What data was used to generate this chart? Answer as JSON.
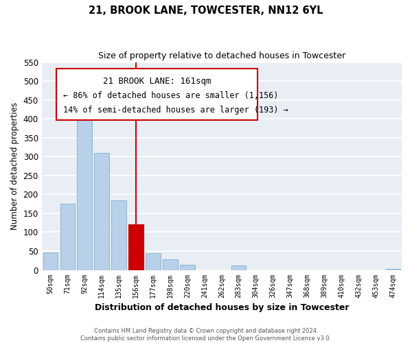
{
  "title": "21, BROOK LANE, TOWCESTER, NN12 6YL",
  "subtitle": "Size of property relative to detached houses in Towcester",
  "xlabel": "Distribution of detached houses by size in Towcester",
  "ylabel": "Number of detached properties",
  "bar_labels": [
    "50sqm",
    "71sqm",
    "92sqm",
    "114sqm",
    "135sqm",
    "156sqm",
    "177sqm",
    "198sqm",
    "220sqm",
    "241sqm",
    "262sqm",
    "283sqm",
    "304sqm",
    "326sqm",
    "347sqm",
    "368sqm",
    "389sqm",
    "410sqm",
    "432sqm",
    "453sqm",
    "474sqm"
  ],
  "bar_values": [
    47,
    175,
    420,
    310,
    185,
    120,
    45,
    28,
    14,
    0,
    0,
    11,
    0,
    0,
    0,
    0,
    0,
    0,
    0,
    0,
    2
  ],
  "highlight_index": 5,
  "highlight_color": "#cc0000",
  "bar_color": "#b8d0e8",
  "bar_edge_color": "#95b8d4",
  "ylim": [
    0,
    550
  ],
  "yticks": [
    0,
    50,
    100,
    150,
    200,
    250,
    300,
    350,
    400,
    450,
    500,
    550
  ],
  "annotation_title": "21 BROOK LANE: 161sqm",
  "annotation_line1": "← 86% of detached houses are smaller (1,156)",
  "annotation_line2": "14% of semi-detached houses are larger (193) →",
  "vline_x_index": 5,
  "footer1": "Contains HM Land Registry data © Crown copyright and database right 2024.",
  "footer2": "Contains public sector information licensed under the Open Government Licence v3.0.",
  "background_color": "#e8eef4"
}
